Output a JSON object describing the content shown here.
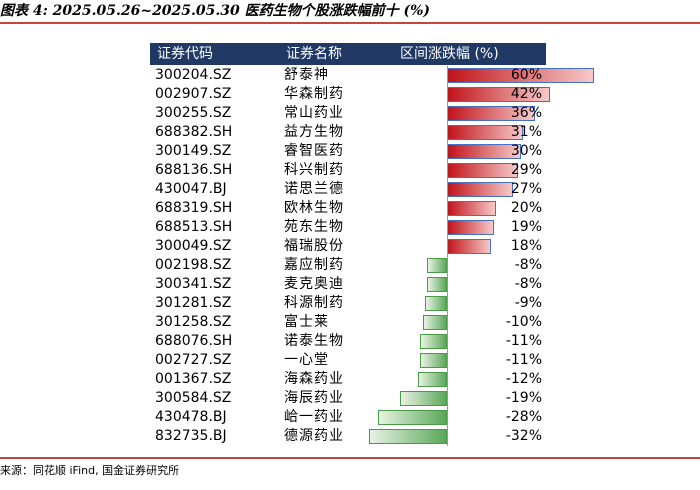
{
  "title": "图表 4: 2025.05.26~2025.05.30 医药生物个股涨跌幅前十 (%)",
  "table": {
    "headers": [
      "证券代码",
      "证券名称",
      "区间涨跌幅 (%)"
    ],
    "rows": [
      {
        "code": "300204.SZ",
        "name": "舒泰神",
        "change": 60,
        "label": "60%"
      },
      {
        "code": "002907.SZ",
        "name": "华森制药",
        "change": 42,
        "label": "42%"
      },
      {
        "code": "300255.SZ",
        "name": "常山药业",
        "change": 36,
        "label": "36%"
      },
      {
        "code": "688382.SH",
        "name": "益方生物",
        "change": 31,
        "label": "31%"
      },
      {
        "code": "300149.SZ",
        "name": "睿智医药",
        "change": 30,
        "label": "30%"
      },
      {
        "code": "688136.SH",
        "name": "科兴制药",
        "change": 29,
        "label": "29%"
      },
      {
        "code": "430047.BJ",
        "name": "诺思兰德",
        "change": 27,
        "label": "27%"
      },
      {
        "code": "688319.SH",
        "name": "欧林生物",
        "change": 20,
        "label": "20%"
      },
      {
        "code": "688513.SH",
        "name": "苑东生物",
        "change": 19,
        "label": "19%"
      },
      {
        "code": "300049.SZ",
        "name": "福瑞股份",
        "change": 18,
        "label": "18%"
      },
      {
        "code": "002198.SZ",
        "name": "嘉应制药",
        "change": -8,
        "label": "-8%"
      },
      {
        "code": "300341.SZ",
        "name": "麦克奥迪",
        "change": -8,
        "label": "-8%"
      },
      {
        "code": "301281.SZ",
        "name": "科源制药",
        "change": -9,
        "label": "-9%"
      },
      {
        "code": "301258.SZ",
        "name": "富士莱",
        "change": -10,
        "label": "-10%"
      },
      {
        "code": "688076.SH",
        "name": "诺泰生物",
        "change": -11,
        "label": "-11%"
      },
      {
        "code": "002727.SZ",
        "name": "一心堂",
        "change": -11,
        "label": "-11%"
      },
      {
        "code": "001367.SZ",
        "name": "海森药业",
        "change": -12,
        "label": "-12%"
      },
      {
        "code": "300584.SZ",
        "name": "海辰药业",
        "change": -19,
        "label": "-19%"
      },
      {
        "code": "430478.BJ",
        "name": "峆一药业",
        "change": -28,
        "label": "-28%"
      },
      {
        "code": "832735.BJ",
        "name": "德源药业",
        "change": -32,
        "label": "-32%"
      }
    ]
  },
  "source": "来源：同花顺 iFind, 国金证券研究所",
  "colors": {
    "header_bg": "#203864",
    "positive": "#c0141a",
    "negative": "#5aa85a",
    "rule": "#c4473b"
  }
}
